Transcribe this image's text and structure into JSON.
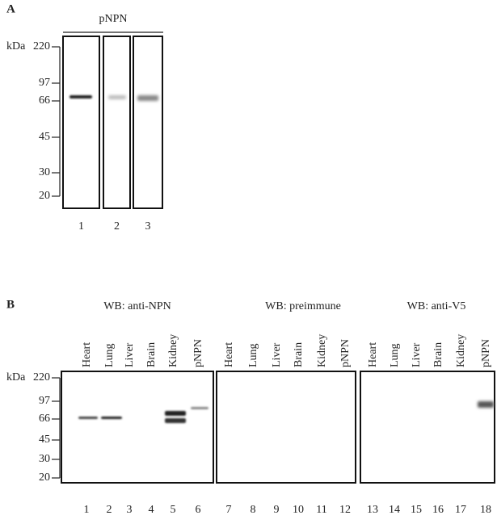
{
  "panel_a": {
    "label": "A",
    "title": "pNPN",
    "unit": "kDa",
    "markers": [
      220,
      97,
      66,
      45,
      30,
      20
    ],
    "lanes": [
      1,
      2,
      3
    ]
  },
  "panel_b": {
    "label": "B",
    "unit": "kDa",
    "markers": [
      220,
      97,
      66,
      45,
      30,
      20
    ],
    "groups": [
      {
        "title": "WB: anti-NPN",
        "lanes": [
          "Heart",
          "Lung",
          "Liver",
          "Brain",
          "Kidney",
          "pNPN"
        ],
        "numbers": [
          1,
          2,
          3,
          4,
          5,
          6
        ]
      },
      {
        "title": "WB: preimmune",
        "lanes": [
          "Heart",
          "Lung",
          "Liver",
          "Brain",
          "Kidney",
          "pNPN"
        ],
        "numbers": [
          7,
          8,
          9,
          10,
          11,
          12
        ]
      },
      {
        "title": "WB: anti-V5",
        "lanes": [
          "Heart",
          "Lung",
          "Liver",
          "Brain",
          "Kidney",
          "pNPN"
        ],
        "numbers": [
          13,
          14,
          15,
          16,
          17,
          18
        ]
      }
    ]
  }
}
